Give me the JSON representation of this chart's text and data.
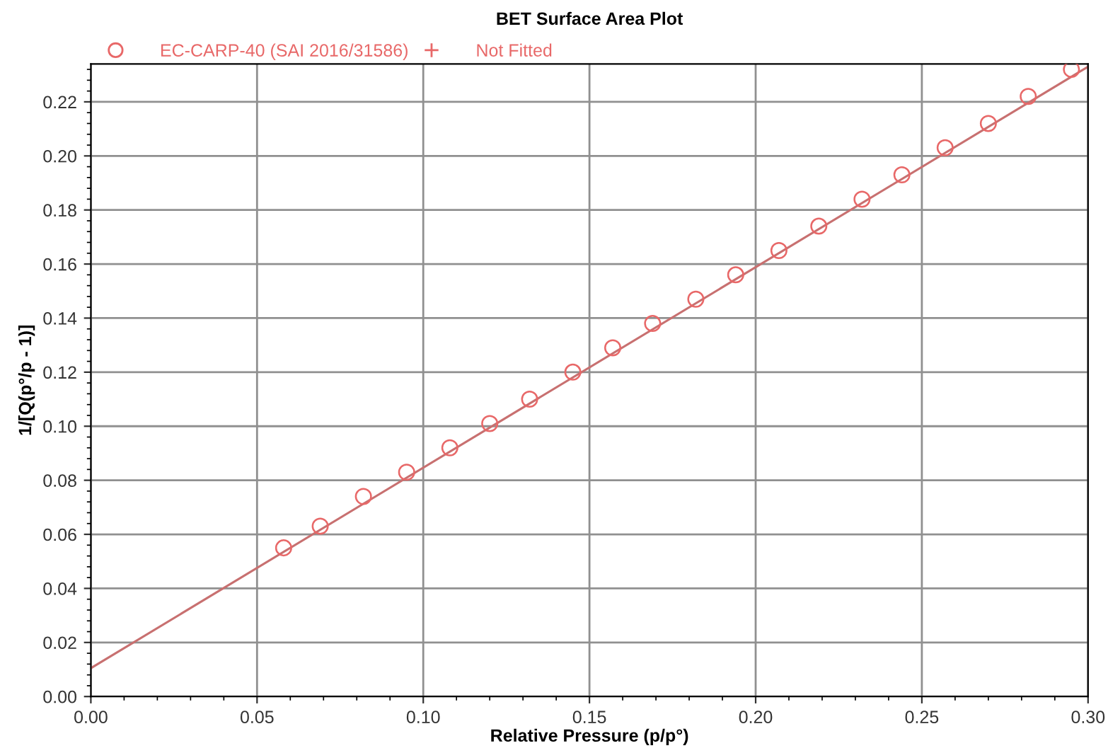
{
  "chart_data": {
    "type": "scatter",
    "title": "BET Surface Area Plot",
    "xlabel": "Relative Pressure (p/p°)",
    "ylabel": "1/[Q(p°/p - 1)]",
    "x": [
      0.058,
      0.069,
      0.082,
      0.095,
      0.108,
      0.12,
      0.132,
      0.145,
      0.157,
      0.169,
      0.182,
      0.194,
      0.207,
      0.219,
      0.232,
      0.244,
      0.257,
      0.27,
      0.282,
      0.295
    ],
    "series": [
      {
        "name": "EC-CARP-40 (SAI 2016/31586)",
        "marker": "circle",
        "color": "#e86868",
        "values": [
          0.055,
          0.063,
          0.074,
          0.083,
          0.092,
          0.101,
          0.11,
          0.12,
          0.129,
          0.138,
          0.147,
          0.156,
          0.165,
          0.174,
          0.184,
          0.193,
          0.203,
          0.212,
          0.222,
          0.232
        ]
      },
      {
        "name": "Not Fitted",
        "marker": "cross",
        "color": "#e86868",
        "values": [
          null,
          null,
          null,
          null,
          null,
          null,
          null,
          null,
          null,
          null,
          null,
          null,
          null,
          null,
          null,
          null,
          null,
          null,
          null,
          null
        ]
      },
      {
        "type": "line",
        "color": "#c87070",
        "x": [
          0.0,
          0.3
        ],
        "values": [
          0.0105,
          0.233
        ]
      }
    ],
    "xlim": [
      0.0,
      0.3
    ],
    "ylim": [
      0.0,
      0.234
    ],
    "xticks": [
      {
        "value": 0.0,
        "label": "0.00"
      },
      0.05,
      {
        "value": 0.1,
        "label": "0.10"
      },
      0.15,
      {
        "value": 0.2,
        "label": "0.20"
      },
      0.25,
      {
        "value": 0.3,
        "label": "0.30"
      }
    ],
    "yticks": [
      {
        "value": 0.0,
        "label": "0.00"
      },
      0.02,
      0.04,
      0.06,
      0.08,
      {
        "value": 0.1,
        "label": "0.10"
      },
      0.12,
      0.14,
      0.16,
      0.18,
      {
        "value": 0.2,
        "label": "0.20"
      },
      0.22
    ],
    "grid": true,
    "legend": "top left"
  }
}
